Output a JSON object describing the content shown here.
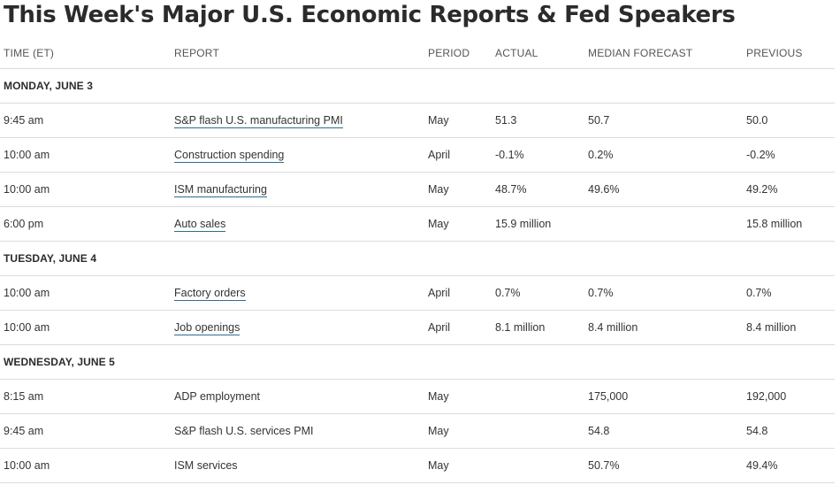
{
  "title": "This Week's Major U.S. Economic Reports & Fed Speakers",
  "columns": {
    "time": "TIME (ET)",
    "report": "REPORT",
    "period": "PERIOD",
    "actual": "ACTUAL",
    "median": "MEDIAN FORECAST",
    "previous": "PREVIOUS"
  },
  "days": [
    {
      "label": "MONDAY, JUNE 3",
      "rows": [
        {
          "time": "9:45 am",
          "report": "S&P flash U.S. manufacturing PMI",
          "linked": true,
          "period": "May",
          "actual": "51.3",
          "median": "50.7",
          "previous": "50.0"
        },
        {
          "time": "10:00 am",
          "report": "Construction spending",
          "linked": true,
          "period": "April",
          "actual": "-0.1%",
          "median": "0.2%",
          "previous": "-0.2%"
        },
        {
          "time": "10:00 am",
          "report": "ISM manufacturing",
          "linked": true,
          "period": "May",
          "actual": "48.7%",
          "median": "49.6%",
          "previous": "49.2%"
        },
        {
          "time": "6:00 pm",
          "report": "Auto sales",
          "linked": true,
          "period": "May",
          "actual": "15.9 million",
          "median": "",
          "previous": "15.8 million"
        }
      ]
    },
    {
      "label": "TUESDAY, JUNE 4",
      "rows": [
        {
          "time": "10:00 am",
          "report": "Factory orders",
          "linked": true,
          "period": "April",
          "actual": "0.7%",
          "median": "0.7%",
          "previous": "0.7%"
        },
        {
          "time": "10:00 am",
          "report": "Job openings",
          "linked": true,
          "period": "April",
          "actual": "8.1 million",
          "median": "8.4 million",
          "previous": "8.4 million"
        }
      ]
    },
    {
      "label": "WEDNESDAY, JUNE 5",
      "rows": [
        {
          "time": "8:15 am",
          "report": "ADP employment",
          "linked": false,
          "period": "May",
          "actual": "",
          "median": "175,000",
          "previous": "192,000"
        },
        {
          "time": "9:45 am",
          "report": "S&P flash U.S. services PMI",
          "linked": false,
          "period": "May",
          "actual": "",
          "median": "54.8",
          "previous": "54.8"
        },
        {
          "time": "10:00 am",
          "report": "ISM services",
          "linked": false,
          "period": "May",
          "actual": "",
          "median": "50.7%",
          "previous": "49.4%"
        }
      ]
    }
  ]
}
